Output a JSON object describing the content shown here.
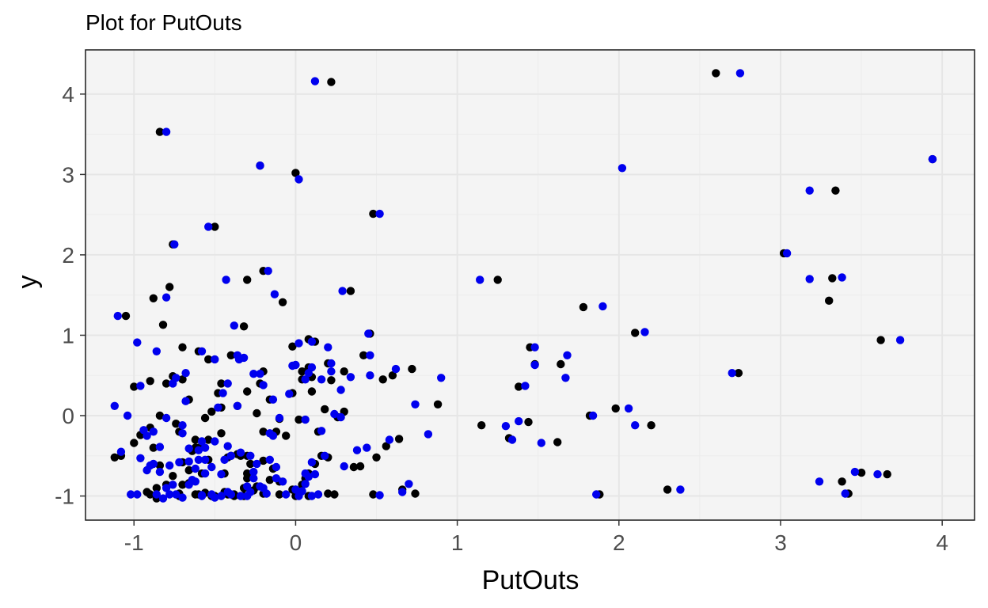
{
  "chart_data": {
    "type": "scatter",
    "title": "Plot for  PutOuts",
    "xlabel": "PutOuts",
    "ylabel": "y",
    "xlim": [
      -1.3,
      4.2
    ],
    "ylim": [
      -1.3,
      4.55
    ],
    "x_ticks": [
      -1,
      0,
      1,
      2,
      3,
      4
    ],
    "x_tick_labels": [
      "-1",
      "0",
      "1",
      "2",
      "3",
      "4"
    ],
    "y_ticks": [
      -1,
      0,
      1,
      2,
      3,
      4
    ],
    "y_tick_labels": [
      "-1",
      "0",
      "1",
      "2",
      "3",
      "4"
    ],
    "grid": true,
    "legend": "none",
    "panel_color": "#f4f4f4",
    "series": [
      {
        "color": "#000000",
        "x": [
          0.22,
          -0.84,
          0.0,
          -0.5,
          0.48,
          -0.22,
          -0.76,
          -0.3,
          0.34,
          -0.88,
          -0.78,
          -1.05,
          -0.08,
          -0.32,
          0.46,
          -1.0,
          -0.2,
          0.12,
          -0.02,
          0.08,
          -0.3,
          -0.9,
          -0.82,
          0.22,
          0.42,
          -0.7,
          0.3,
          -0.2,
          0.1,
          0.72,
          0.6,
          -0.24,
          -1.08,
          -0.76,
          -0.48,
          -0.66,
          -0.36,
          -0.46,
          0.18,
          -0.02,
          -0.1,
          0.04,
          -0.4,
          -0.62,
          -0.2,
          0.02,
          0.88,
          0.26,
          -0.54,
          -0.12,
          -0.84,
          -0.96,
          -1.0,
          -0.7,
          -0.44,
          -0.62,
          -0.16,
          0.08,
          -0.32,
          0.36,
          -0.86,
          0.56,
          0.64,
          -1.12,
          -0.72,
          -0.62,
          -0.26,
          0.0,
          0.2,
          -0.56,
          -0.38,
          0.74,
          -0.1,
          0.4,
          -0.6,
          -0.86,
          -0.3,
          -0.66,
          -0.42,
          -0.2,
          0.12,
          0.48,
          -0.9,
          -0.72,
          -0.54,
          -0.36,
          -0.14,
          -0.3,
          0.04,
          -0.02,
          0.24,
          -0.84,
          -0.74,
          -0.3,
          -0.58,
          -0.66,
          -0.44,
          -0.24,
          -0.1,
          0.06,
          0.16,
          -0.8,
          -0.9,
          -0.6,
          -0.42,
          -0.5,
          0.08,
          -0.2,
          0.0,
          -0.32,
          -0.72,
          -0.52,
          -0.38,
          -0.7,
          -0.28,
          0.14,
          -0.88,
          -0.64,
          -0.16,
          0.04,
          -0.46,
          0.08,
          -0.22,
          0.2,
          -0.8,
          -0.54,
          -0.4,
          -0.6,
          0.5,
          -0.06,
          0.3,
          0.66,
          -0.92,
          1.25,
          1.45,
          1.64,
          1.78,
          2.1,
          2.2,
          1.38,
          1.44,
          1.32,
          1.15,
          1.62,
          2.3,
          1.88,
          1.82,
          1.48,
          1.98,
          2.6,
          2.74,
          3.34,
          3.02,
          3.32,
          3.3,
          3.62,
          3.38,
          3.42,
          3.5,
          3.66,
          3.94,
          -0.46,
          -0.34,
          0.54,
          0.2,
          0.1,
          -0.7,
          -0.52,
          -0.56,
          -0.76
        ],
        "y": [
          4.15,
          3.53,
          3.02,
          2.35,
          2.51,
          3.11,
          2.13,
          1.69,
          1.55,
          1.46,
          1.6,
          1.24,
          1.41,
          1.11,
          1.02,
          0.36,
          1.8,
          0.92,
          0.86,
          0.95,
          0.3,
          0.43,
          1.13,
          0.44,
          0.75,
          0.45,
          0.55,
          0.55,
          0.48,
          0.58,
          0.5,
          0.03,
          -0.5,
          0.49,
          0.28,
          0.2,
          0.12,
          0.1,
          0.08,
          0.28,
          -0.04,
          0.55,
          -0.5,
          -0.3,
          -0.2,
          -0.05,
          0.14,
          -0.02,
          -0.55,
          -0.2,
          -0.62,
          -0.24,
          -0.34,
          -0.58,
          -0.72,
          -0.4,
          -0.8,
          -0.72,
          -0.9,
          -0.64,
          -0.9,
          -0.38,
          -0.29,
          -0.52,
          -0.97,
          -0.98,
          -0.93,
          -0.92,
          -0.97,
          -0.96,
          -0.98,
          -0.97,
          -0.98,
          -0.63,
          -0.4,
          -1.03,
          -0.72,
          -0.68,
          -0.52,
          -0.56,
          -0.6,
          -0.98,
          -0.15,
          -0.2,
          -0.3,
          -0.48,
          -0.66,
          -0.78,
          -0.86,
          -0.92,
          -0.98,
          0.0,
          -0.1,
          -0.5,
          -0.72,
          -0.84,
          -0.95,
          -0.88,
          -0.82,
          -0.78,
          -0.5,
          -0.86,
          -0.98,
          -0.98,
          -0.98,
          -1.0,
          -1.0,
          -0.97,
          -1.0,
          -1.0,
          -1.0,
          -1.0,
          -1.0,
          -0.86,
          -0.6,
          -0.2,
          -0.4,
          -0.44,
          0.2,
          0.45,
          0.4,
          0.6,
          0.4,
          0.65,
          0.4,
          0.7,
          0.75,
          0.8,
          -0.52,
          -0.25,
          0.05,
          -0.92,
          -0.95,
          1.69,
          0.85,
          0.64,
          1.35,
          1.03,
          -0.12,
          0.36,
          -0.08,
          -0.28,
          -0.12,
          -0.33,
          -0.92,
          -0.98,
          0.0,
          0.64,
          0.09,
          4.26,
          0.53,
          2.8,
          2.02,
          1.71,
          1.43,
          0.94,
          -0.82,
          -0.97,
          -0.71,
          -0.73,
          3.19,
          -0.22,
          -0.5,
          0.45,
          -0.52,
          0.3,
          0.85,
          0.05,
          -0.03,
          -0.75
        ]
      },
      {
        "color": "#0000ee",
        "x": [
          0.12,
          -0.8,
          0.02,
          -0.54,
          0.52,
          -0.22,
          -0.75,
          -0.43,
          0.29,
          -0.8,
          -1.1,
          -0.13,
          -0.38,
          0.45,
          -0.96,
          -0.17,
          0.1,
          0.02,
          -0.35,
          -0.98,
          -0.86,
          0.2,
          0.46,
          -0.68,
          0.22,
          -0.22,
          0.16,
          0.62,
          -0.26,
          -1.12,
          -0.74,
          -0.45,
          -0.68,
          -0.36,
          -0.48,
          0.24,
          -0.04,
          -0.1,
          0.08,
          -0.44,
          -0.58,
          -0.16,
          0.06,
          0.74,
          0.28,
          -0.56,
          -0.14,
          -0.88,
          -0.92,
          -1.08,
          -0.72,
          -0.46,
          -0.66,
          -0.12,
          0.06,
          -0.3,
          0.3,
          -0.8,
          0.58,
          0.66,
          -1.02,
          -0.78,
          -0.58,
          -0.28,
          0.04,
          0.14,
          -0.52,
          -0.4,
          0.7,
          -0.06,
          0.44,
          -0.56,
          -0.82,
          -0.26,
          -0.62,
          -0.4,
          -0.16,
          0.1,
          0.52,
          -0.94,
          -0.7,
          -0.5,
          -0.34,
          -0.12,
          -0.26,
          0.06,
          0.0,
          -0.8,
          -0.7,
          -0.28,
          -0.56,
          -0.62,
          -0.42,
          -0.22,
          -0.08,
          0.08,
          0.18,
          -0.76,
          -0.86,
          -0.58,
          -0.4,
          -0.46,
          0.1,
          -0.18,
          0.02,
          -0.3,
          -0.7,
          -0.5,
          -0.34,
          -0.66,
          -0.24,
          0.16,
          -0.84,
          -0.6,
          -0.14,
          0.06,
          -0.42,
          0.1,
          -0.2,
          0.22,
          -0.76,
          -0.5,
          -0.36,
          -0.58,
          0.46,
          -0.02,
          0.34,
          0.82,
          0.9,
          -0.96,
          -0.88,
          -0.92,
          -0.84,
          -0.78,
          -0.66,
          -0.6,
          -0.52,
          1.14,
          1.48,
          1.48,
          1.68,
          2.16,
          2.1,
          1.42,
          1.38,
          1.3,
          1.34,
          1.52,
          1.67,
          2.38,
          1.86,
          1.84,
          1.9,
          2.06,
          2.02,
          2.75,
          2.7,
          3.18,
          3.04,
          3.18,
          3.38,
          3.74,
          3.24,
          3.4,
          3.46,
          3.6,
          3.94,
          -0.32,
          0.28,
          0.38,
          0.0,
          -0.64,
          -0.74,
          -0.42,
          -0.9,
          -0.2,
          0.12,
          -1.04,
          -0.98
        ],
        "y": [
          4.16,
          3.53,
          2.94,
          2.35,
          2.51,
          3.11,
          2.13,
          1.69,
          1.55,
          1.47,
          1.24,
          1.51,
          1.12,
          1.02,
          0.37,
          1.8,
          0.92,
          0.9,
          0.7,
          0.91,
          0.8,
          0.85,
          0.75,
          0.53,
          0.55,
          0.52,
          0.45,
          0.58,
          0.52,
          0.12,
          0.47,
          0.28,
          0.18,
          0.12,
          0.1,
          0.02,
          0.27,
          -0.03,
          0.53,
          -0.55,
          -0.32,
          -0.22,
          -0.05,
          0.14,
          -0.02,
          -0.55,
          -0.25,
          -0.2,
          -0.25,
          -0.45,
          -0.58,
          -0.73,
          -0.41,
          -0.78,
          -0.72,
          -0.88,
          -0.63,
          -0.9,
          -0.3,
          -0.95,
          -0.98,
          -0.98,
          -1.0,
          -0.95,
          -0.94,
          -0.98,
          -0.98,
          -0.98,
          -0.85,
          -0.98,
          -0.4,
          -0.4,
          -1.03,
          -0.7,
          -0.66,
          -0.5,
          -0.55,
          -0.58,
          -0.99,
          -0.18,
          -0.22,
          -0.32,
          -0.46,
          -0.64,
          -0.78,
          -0.85,
          -0.92,
          -0.03,
          -0.12,
          -0.5,
          -0.72,
          -0.82,
          -0.95,
          -0.88,
          -0.82,
          -0.76,
          -0.5,
          -0.86,
          -0.98,
          -0.99,
          -0.98,
          -1.0,
          -1.0,
          -0.97,
          -1.0,
          -1.0,
          -1.02,
          -1.02,
          -1.0,
          -0.86,
          -0.6,
          -0.19,
          -0.39,
          -0.43,
          0.2,
          0.45,
          0.4,
          0.6,
          0.38,
          0.65,
          0.4,
          0.7,
          0.75,
          0.8,
          0.5,
          0.62,
          0.48,
          -0.23,
          0.47,
          -0.53,
          -0.6,
          -0.68,
          -0.7,
          -0.62,
          -0.57,
          -0.55,
          -0.64,
          1.69,
          0.85,
          0.63,
          0.75,
          1.04,
          -0.12,
          0.37,
          -0.07,
          -0.13,
          -0.3,
          -0.34,
          0.47,
          -0.92,
          -0.98,
          0.0,
          1.36,
          0.09,
          3.08,
          4.26,
          0.53,
          2.8,
          2.02,
          1.7,
          1.72,
          0.94,
          -0.82,
          -0.97,
          -0.7,
          -0.73,
          3.19,
          0.72,
          0.32,
          -0.43,
          0.63,
          -0.8,
          -0.98,
          -0.38,
          -0.62,
          -0.9,
          -0.73,
          0.0,
          -0.98
        ]
      }
    ]
  }
}
